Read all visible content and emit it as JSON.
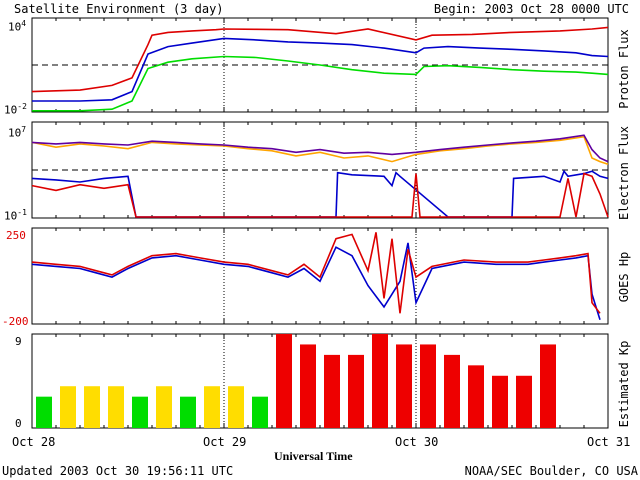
{
  "header": {
    "title": "Satellite Environment (3 day)",
    "begin": "Begin:  2003 Oct 28 0000 UTC"
  },
  "footer": {
    "updated": "Updated 2003 Oct 30 19:56:11 UTC",
    "credit": "NOAA/SEC Boulder, CO USA"
  },
  "x_axis": {
    "label": "Universal Time",
    "ticks": [
      "Oct 28",
      "Oct 29",
      "Oct 30",
      "Oct 31"
    ]
  },
  "panels": {
    "proton": {
      "ylabel": "Proton Flux",
      "ymax_label": "10",
      "ymax_exp": "4",
      "ymin_label": "10",
      "ymin_exp": "-2"
    },
    "electron": {
      "ylabel": "Electron Flux",
      "ymax_label": "10",
      "ymax_exp": "7",
      "ymin_label": "10",
      "ymin_exp": "-1"
    },
    "goes_hp": {
      "ylabel": "GOES Hp",
      "ymax_label": "250",
      "ymin_label": "-200"
    },
    "kp": {
      "ylabel": "Estimated Kp",
      "ymax_label": "9",
      "ymin_label": "0"
    }
  },
  "chart_data": [
    {
      "type": "line",
      "panel": "proton",
      "yscale": "log",
      "ylim": [
        0.01,
        10000
      ],
      "xlim": [
        0,
        72
      ],
      "threshold": 10,
      "colors": {
        "high": "#dd0000",
        "mid": "#0000cc",
        "low": "#00dd00",
        "threshold": "#000000"
      },
      "series": [
        {
          "key": "high",
          "x": [
            0,
            6,
            10,
            12.5,
            14.5,
            15,
            17,
            20,
            23,
            24,
            28,
            32,
            38,
            42,
            48,
            50,
            55,
            60,
            66,
            70,
            72
          ],
          "y": [
            0.2,
            0.25,
            0.5,
            1.5,
            200,
            800,
            1200,
            1500,
            1800,
            2000,
            1900,
            1800,
            1000,
            2000,
            400,
            800,
            900,
            1200,
            1500,
            2000,
            2500
          ]
        },
        {
          "key": "mid",
          "x": [
            0,
            6,
            10,
            12.5,
            14.5,
            17,
            20,
            24,
            28,
            32,
            36,
            40,
            44,
            48,
            49,
            52,
            56,
            60,
            64,
            68,
            70,
            72
          ],
          "y": [
            0.05,
            0.05,
            0.06,
            0.2,
            50,
            150,
            250,
            500,
            400,
            300,
            250,
            200,
            120,
            60,
            120,
            150,
            120,
            100,
            80,
            60,
            40,
            35
          ]
        },
        {
          "key": "low",
          "x": [
            0,
            6,
            10,
            12.5,
            14.5,
            17,
            20,
            24,
            28,
            32,
            36,
            40,
            44,
            48,
            49,
            52,
            56,
            60,
            64,
            68,
            70,
            72
          ],
          "y": [
            0.012,
            0.012,
            0.015,
            0.05,
            6,
            15,
            25,
            35,
            30,
            18,
            10,
            5,
            3,
            2.5,
            8,
            9,
            7,
            5,
            4,
            3.5,
            3,
            2.5
          ]
        }
      ]
    },
    {
      "type": "line",
      "panel": "electron",
      "yscale": "log",
      "ylim": [
        0.1,
        10000000
      ],
      "xlim": [
        0,
        72
      ],
      "threshold": 1000,
      "colors": {
        "orange": "#ffa500",
        "purple": "#6000a0",
        "blue": "#0000cc",
        "red": "#dd0000"
      },
      "series": [
        {
          "key": "orange",
          "x": [
            0,
            3,
            6,
            9,
            12,
            15,
            18,
            21,
            24,
            27,
            30,
            33,
            36,
            39,
            42,
            45,
            48,
            51,
            54,
            57,
            60,
            63,
            66,
            69,
            70,
            71,
            72
          ],
          "y": [
            200000,
            80000,
            150000,
            100000,
            60000,
            200000,
            150000,
            120000,
            100000,
            60000,
            40000,
            15000,
            30000,
            10000,
            15000,
            5000,
            20000,
            40000,
            60000,
            100000,
            150000,
            200000,
            300000,
            600000,
            10000,
            5000,
            3000
          ]
        },
        {
          "key": "purple",
          "x": [
            0,
            3,
            6,
            9,
            12,
            15,
            18,
            21,
            24,
            27,
            30,
            33,
            36,
            39,
            42,
            45,
            48,
            51,
            54,
            57,
            60,
            63,
            66,
            69,
            70,
            71,
            72
          ],
          "y": [
            200000,
            150000,
            200000,
            150000,
            120000,
            250000,
            200000,
            150000,
            120000,
            80000,
            60000,
            30000,
            50000,
            25000,
            30000,
            20000,
            30000,
            50000,
            80000,
            120000,
            180000,
            250000,
            400000,
            800000,
            50000,
            10000,
            5000
          ]
        },
        {
          "key": "blue",
          "x": [
            0,
            3,
            6,
            9,
            12,
            13,
            14,
            38,
            38.2,
            40,
            44,
            45,
            45.5,
            46,
            52,
            60,
            60.2,
            64,
            66,
            66.5,
            67,
            69,
            70,
            71,
            72
          ],
          "y": [
            200,
            150,
            100,
            200,
            300,
            0.12,
            0.12,
            0.12,
            600,
            400,
            300,
            50,
            600,
            300,
            0.12,
            0.12,
            200,
            300,
            100,
            800,
            300,
            500,
            800,
            300,
            200
          ]
        },
        {
          "key": "red",
          "x": [
            0,
            3,
            6,
            9,
            12,
            13,
            14,
            38,
            39,
            40,
            44,
            46,
            47.5,
            48,
            48.5,
            55,
            60,
            64,
            66,
            67,
            68,
            69,
            70,
            71,
            72
          ],
          "y": [
            50,
            20,
            60,
            30,
            60,
            0.12,
            0.12,
            0.12,
            0.12,
            0.12,
            0.12,
            0.12,
            0.12,
            500,
            0.12,
            0.12,
            0.12,
            0.12,
            0.12,
            200,
            0.12,
            500,
            300,
            10,
            0.12
          ]
        }
      ]
    },
    {
      "type": "line",
      "panel": "goes_hp",
      "ylim": [
        -200,
        250
      ],
      "xlim": [
        0,
        72
      ],
      "colors": {
        "blue": "#0000cc",
        "red": "#dd0000"
      },
      "series": [
        {
          "key": "blue",
          "x": [
            0,
            3,
            6,
            8,
            10,
            12,
            15,
            18,
            21,
            24,
            27,
            30,
            32,
            34,
            36,
            38,
            40,
            42,
            44,
            46,
            47,
            48,
            50,
            54,
            58,
            62,
            64,
            66,
            68,
            69.5,
            70,
            71
          ],
          "y": [
            80,
            70,
            60,
            40,
            20,
            60,
            110,
            120,
            100,
            80,
            70,
            40,
            20,
            60,
            0,
            160,
            120,
            -20,
            -120,
            0,
            180,
            -100,
            60,
            90,
            80,
            80,
            90,
            100,
            110,
            120,
            -60,
            -180
          ]
        },
        {
          "key": "red",
          "x": [
            0,
            3,
            6,
            8,
            10,
            12,
            15,
            18,
            21,
            24,
            27,
            30,
            32,
            34,
            36,
            38,
            40,
            42,
            43,
            44,
            45,
            46,
            47,
            48,
            50,
            54,
            58,
            62,
            64,
            66,
            68,
            69.5,
            70,
            71
          ],
          "y": [
            90,
            80,
            70,
            50,
            30,
            70,
            120,
            130,
            110,
            90,
            80,
            50,
            30,
            80,
            20,
            200,
            220,
            50,
            230,
            -80,
            200,
            -150,
            150,
            20,
            70,
            100,
            90,
            90,
            100,
            110,
            120,
            130,
            -100,
            -150
          ]
        }
      ]
    },
    {
      "type": "bar",
      "panel": "kp",
      "ylim": [
        0,
        9
      ],
      "bar_hours": 3,
      "colors": {
        "quiet": "#00dd00",
        "active": "#ffdd00",
        "storm": "#ee0000"
      },
      "values": [
        3,
        4,
        4,
        4,
        3,
        4,
        3,
        4,
        4,
        3,
        9,
        8,
        7,
        7,
        9,
        8,
        8,
        7,
        6,
        5,
        5,
        8
      ],
      "levels": [
        "quiet",
        "active",
        "active",
        "active",
        "quiet",
        "active",
        "quiet",
        "active",
        "active",
        "quiet",
        "storm",
        "storm",
        "storm",
        "storm",
        "storm",
        "storm",
        "storm",
        "storm",
        "storm",
        "storm",
        "storm",
        "storm"
      ]
    }
  ]
}
